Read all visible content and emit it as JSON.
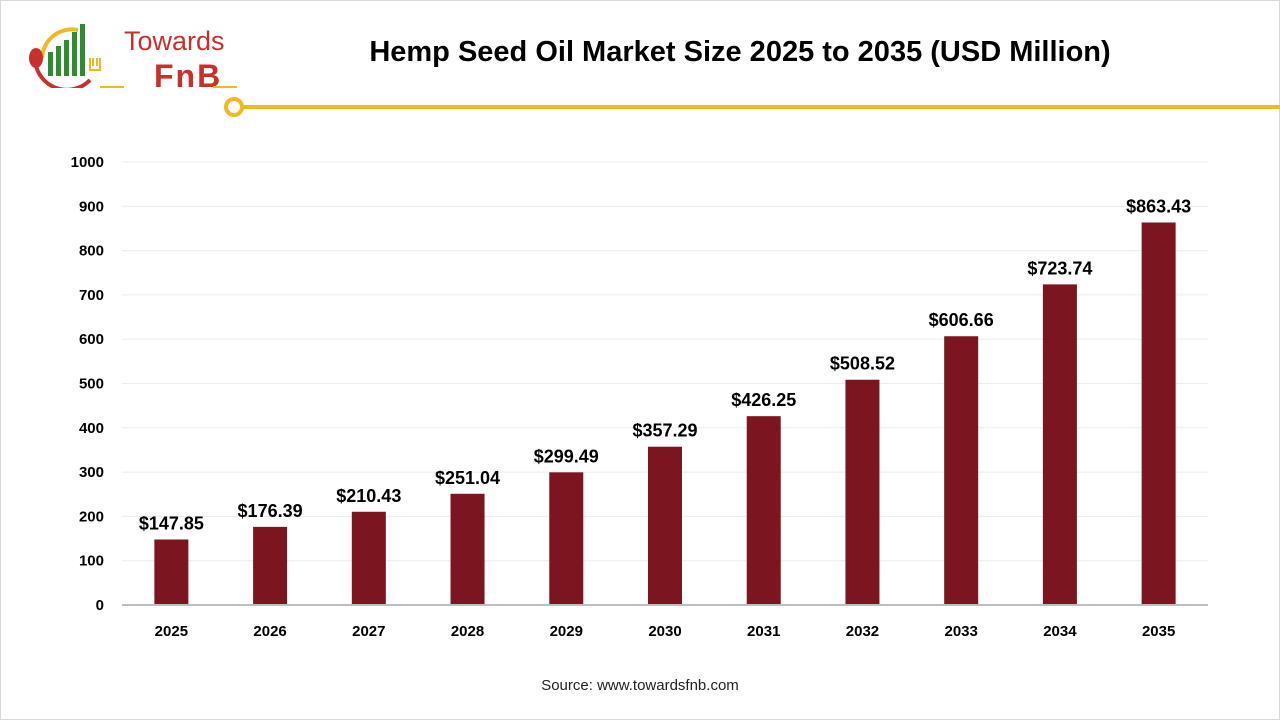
{
  "title": "Hemp Seed Oil Market Size 2025 to 2035 (USD Million)",
  "source": "Source: www.towardsfnb.com",
  "logo": {
    "line1": "Towards",
    "line2": "FnB"
  },
  "colors": {
    "bar": "#7b1520",
    "accent": "#f2b824",
    "brand": "#c9302c"
  },
  "chart_data": {
    "type": "bar",
    "title": "Hemp Seed Oil Market Size 2025 to 2035 (USD Million)",
    "categories": [
      "2025",
      "2026",
      "2027",
      "2028",
      "2029",
      "2030",
      "2031",
      "2032",
      "2033",
      "2034",
      "2035"
    ],
    "values": [
      147.85,
      176.39,
      210.43,
      251.04,
      299.49,
      357.29,
      426.25,
      508.52,
      606.66,
      723.74,
      863.43
    ],
    "data_labels": [
      "$147.85",
      "$176.39",
      "$210.43",
      "$251.04",
      "$299.49",
      "$357.29",
      "$426.25",
      "$508.52",
      "$606.66",
      "$723.74",
      "$863.43"
    ],
    "yticks": [
      0,
      100,
      200,
      300,
      400,
      500,
      600,
      700,
      800,
      900,
      1000
    ],
    "ylim": [
      0,
      1000
    ],
    "grid": true,
    "xlabel": "",
    "ylabel": ""
  }
}
